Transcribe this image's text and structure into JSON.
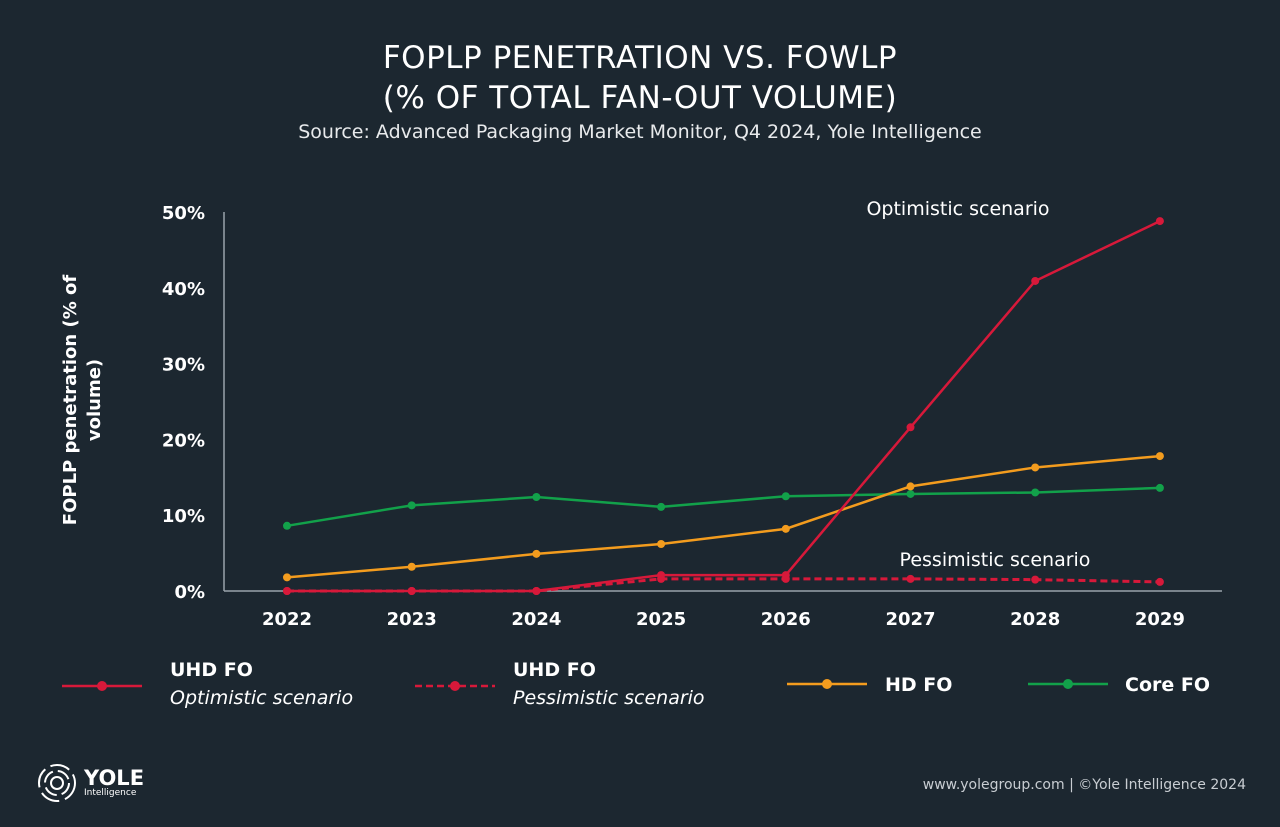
{
  "chart_data": {
    "type": "line",
    "title": "FOPLP PENETRATION VS. FOWLP",
    "title_line2": "(% OF TOTAL FAN-OUT VOLUME)",
    "subtitle": "Source: Advanced Packaging Market Monitor, Q4 2024, Yole Intelligence",
    "ylabel_line1": "FOPLP penetration (% of",
    "ylabel_line2": "volume)",
    "x": [
      "2022",
      "2023",
      "2024",
      "2025",
      "2026",
      "2027",
      "2028",
      "2029"
    ],
    "ylim": [
      0,
      50
    ],
    "yticks": [
      "0%",
      "10%",
      "20%",
      "30%",
      "40%",
      "50%"
    ],
    "series": [
      {
        "name": "UHD FO",
        "sub": "Optimistic scenario",
        "color": "#d7193a",
        "dashed": false,
        "values": [
          0,
          0,
          0,
          2.1,
          2.1,
          21.6,
          40.9,
          48.8
        ]
      },
      {
        "name": "UHD FO",
        "sub": "Pessimistic scenario",
        "color": "#d7193a",
        "dashed": true,
        "values": [
          0,
          0,
          0,
          1.6,
          1.6,
          1.6,
          1.5,
          1.2
        ]
      },
      {
        "name": "HD FO",
        "sub": "",
        "color": "#f39c1e",
        "dashed": false,
        "values": [
          1.8,
          3.2,
          4.9,
          6.2,
          8.2,
          13.8,
          16.3,
          17.8
        ]
      },
      {
        "name": "Core FO",
        "sub": "",
        "color": "#12a14a",
        "dashed": false,
        "values": [
          8.6,
          11.3,
          12.4,
          11.1,
          12.5,
          12.8,
          13.0,
          13.6
        ]
      }
    ],
    "annotations": [
      "Optimistic scenario",
      "Pessimistic scenario"
    ],
    "grid": false,
    "legend": "bottom"
  },
  "logo": {
    "name": "YOLE",
    "sub": "Intelligence"
  },
  "footer": "www.yolegroup.com | ©Yole Intelligence 2024"
}
